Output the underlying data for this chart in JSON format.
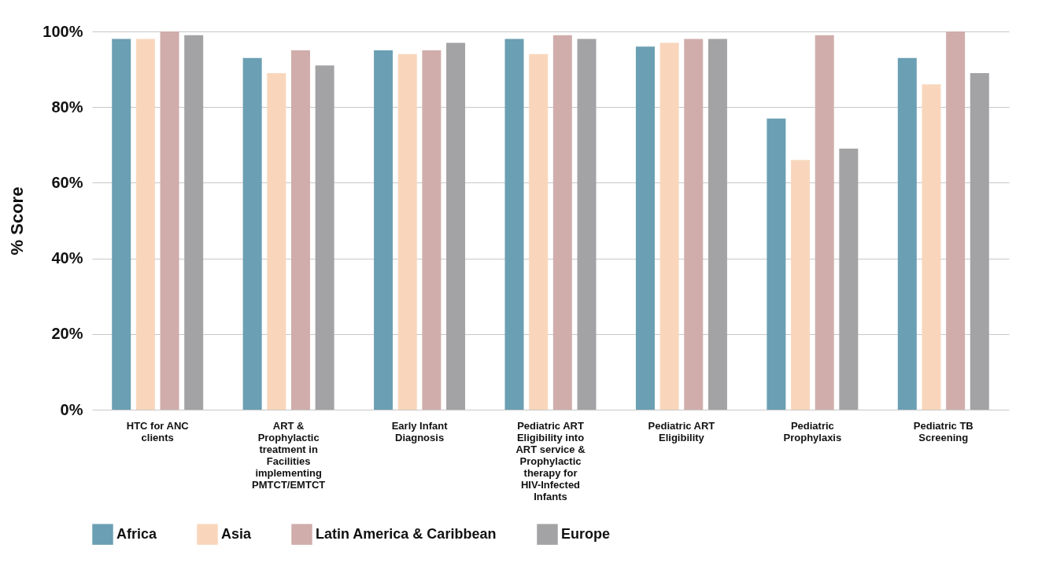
{
  "chart_data": {
    "type": "bar",
    "ylabel": "% Score",
    "categories": [
      "HTC for ANC clients",
      "ART & Prophylactic treatment in Facilities implementing PMTCT/EMTCT",
      "Early Infant Diagnosis",
      "Pediatric ART Eligibility into ART service & Prophylactic therapy for HIV-Infected Infants",
      "Pediatric ART Eligibility",
      "Pediatric Prophylaxis",
      "Pediatric TB Screening"
    ],
    "series": [
      {
        "name": "Africa",
        "color": "#6b9fb3",
        "values": [
          98,
          93,
          95,
          98,
          96,
          77,
          93
        ]
      },
      {
        "name": "Asia",
        "color": "#f9d6bb",
        "values": [
          98,
          89,
          94,
          94,
          97,
          66,
          86
        ]
      },
      {
        "name": "Latin America & Caribbean",
        "color": "#d0adab",
        "values": [
          100,
          95,
          95,
          99,
          98,
          99,
          100
        ]
      },
      {
        "name": "Europe",
        "color": "#a3a3a5",
        "values": [
          99,
          91,
          97,
          98,
          98,
          69,
          89
        ]
      }
    ],
    "ylim": [
      0,
      100
    ],
    "yticks": [
      {
        "value": 0,
        "label": "0%"
      },
      {
        "value": 20,
        "label": "20%"
      },
      {
        "value": 40,
        "label": "40%"
      },
      {
        "value": 60,
        "label": "60%"
      },
      {
        "value": 80,
        "label": "80%"
      },
      {
        "value": 100,
        "label": "100%"
      }
    ],
    "grid": "y",
    "legend": "bottom"
  }
}
